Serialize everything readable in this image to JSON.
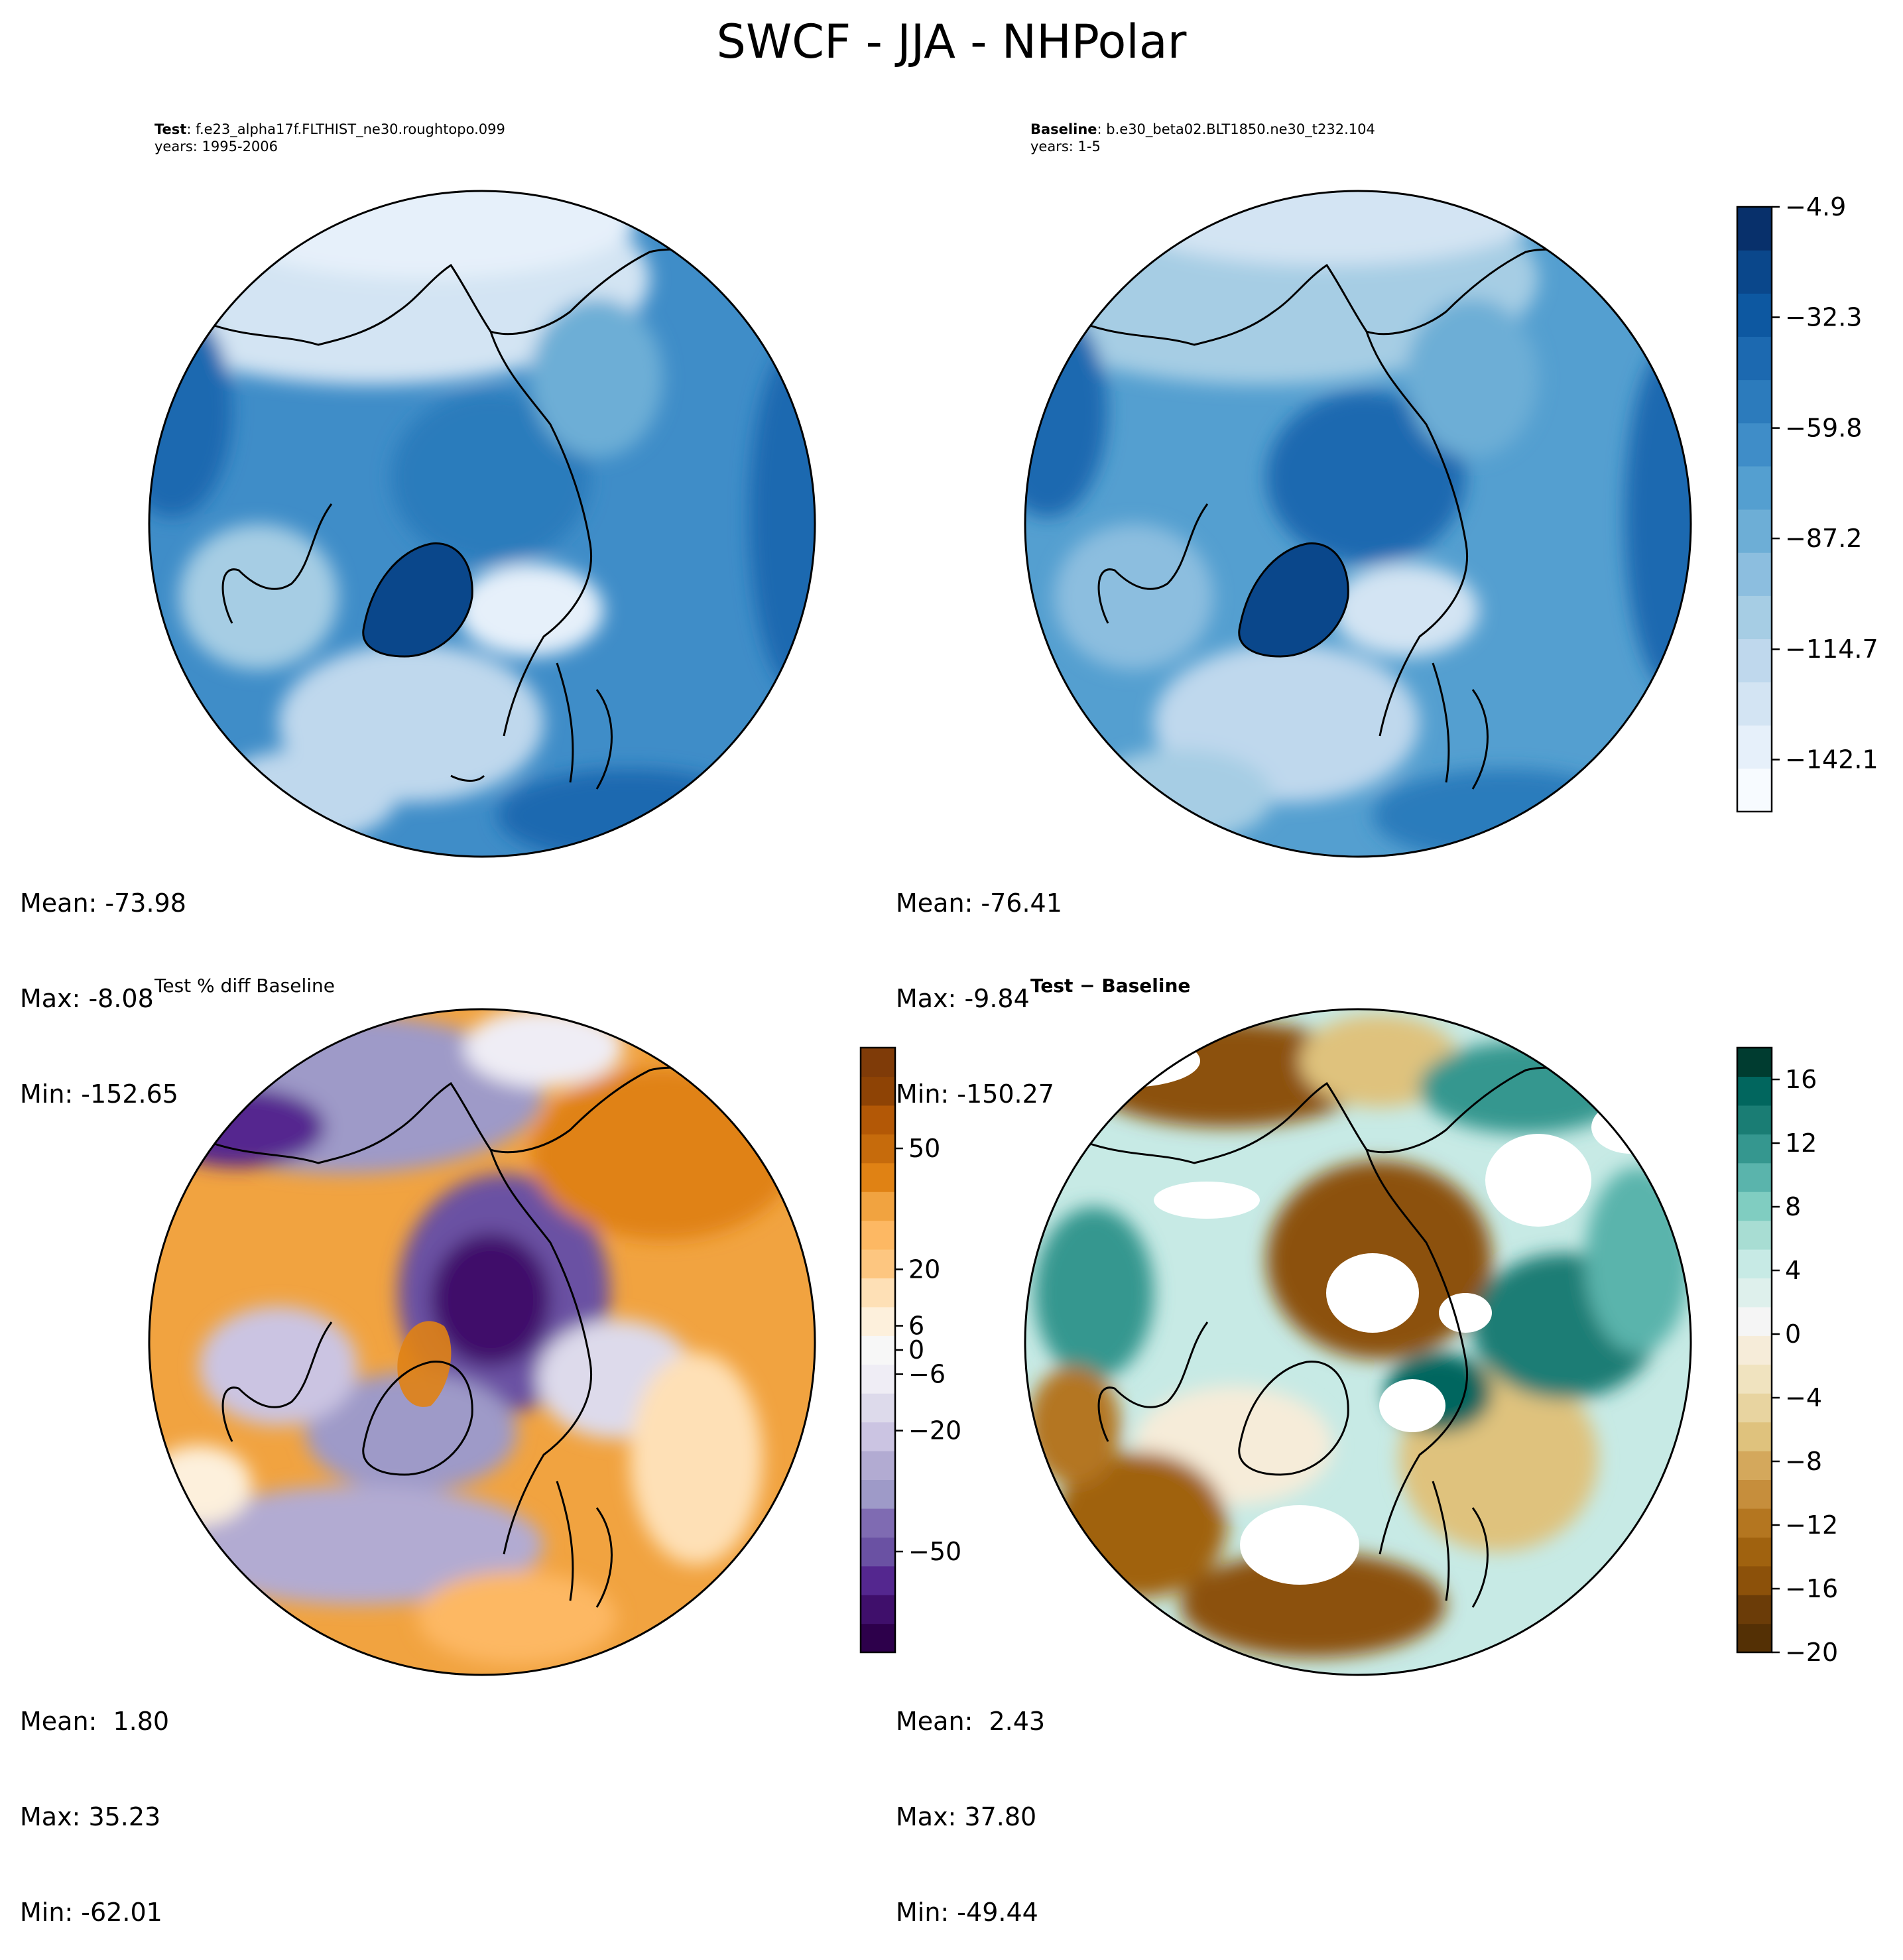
{
  "figure": {
    "title": "SWCF - JJA - NHPolar"
  },
  "panels": {
    "test": {
      "label_bold": "Test",
      "label_rest": ": f.e23_alpha17f.FLTHIST_ne30.roughtopo.099",
      "years": "years: 1995-2006",
      "stats": {
        "mean": "Mean: -73.98",
        "max": "Max: -8.08",
        "min": "Min: -152.65"
      }
    },
    "baseline": {
      "label_bold": "Baseline",
      "label_rest": ": b.e30_beta02.BLT1850.ne30_t232.104",
      "years": "years: 1-5",
      "stats": {
        "mean": "Mean: -76.41",
        "max": "Max: -9.84",
        "min": "Min: -150.27"
      }
    },
    "pct_diff": {
      "label": "Test % diff Baseline",
      "stats": {
        "mean": "Mean:  1.80",
        "max": "Max: 35.23",
        "min": "Min: -62.01"
      }
    },
    "diff": {
      "label": "Test − Baseline",
      "stats": {
        "mean": "Mean:  2.43",
        "max": "Max: 37.80",
        "min": "Min: -49.44"
      }
    }
  },
  "chart_data": [
    {
      "type": "heatmap",
      "title": "Test : f.e23_alpha17f.FLTHIST_ne30.roughtopo.099",
      "subtitle": "years: 1995-2006",
      "projection": "north polar stereographic",
      "colormap": "Blues",
      "summary": {
        "mean": -73.98,
        "max": -8.08,
        "min": -152.65
      },
      "colorbar": "shared with Baseline panel"
    },
    {
      "type": "heatmap",
      "title": "Baseline : b.e30_beta02.BLT1850.ne30_t232.104",
      "subtitle": "years: 1-5",
      "projection": "north polar stereographic",
      "colormap": "Blues",
      "summary": {
        "mean": -76.41,
        "max": -9.84,
        "min": -150.27
      },
      "colorbar": {
        "range": [
          -155,
          -4.9
        ],
        "ticks": [
          -4.9,
          -32.3,
          -59.8,
          -87.2,
          -114.7,
          -142.1
        ],
        "tick_labels": [
          "−4.9",
          "−32.3",
          "−59.8",
          "−87.2",
          "−114.7",
          "−142.1"
        ],
        "colors": [
          "#f7fbff",
          "#e6f0fa",
          "#d3e4f3",
          "#bfd8ed",
          "#a6cde4",
          "#8cbedf",
          "#6daed6",
          "#549fd0",
          "#3f8dc8",
          "#2c7bbc",
          "#1c69b0",
          "#0d58a1",
          "#0a478b",
          "#08306b"
        ]
      }
    },
    {
      "type": "heatmap",
      "title": "Test % diff Baseline",
      "projection": "north polar stereographic",
      "colormap": "PuOr (diverging)",
      "summary": {
        "mean": 1.8,
        "max": 35.23,
        "min": -62.01
      },
      "colorbar": {
        "range": [
          -75,
          75
        ],
        "ticks": [
          50,
          20,
          6,
          0,
          -6,
          -20,
          -50
        ],
        "tick_labels": [
          "50",
          "20",
          "6",
          "0",
          "−6",
          "−20",
          "−50"
        ],
        "colors_bottom_to_top": [
          "#2d004b",
          "#3f0f6b",
          "#54278f",
          "#6a51a3",
          "#7f6bb2",
          "#9e9ac8",
          "#b2abd2",
          "#cbc4e2",
          "#dddaeb",
          "#efedf5",
          "#f7f7f7",
          "#fdf0dc",
          "#fee0b6",
          "#fdc680",
          "#fdb863",
          "#f1a340",
          "#e08214",
          "#c66b0c",
          "#b35806",
          "#8e4305",
          "#7f3b08"
        ]
      }
    },
    {
      "type": "heatmap",
      "title": "Test − Baseline",
      "projection": "north polar stereographic",
      "colormap": "BrBG (diverging)",
      "summary": {
        "mean": 2.43,
        "max": 37.8,
        "min": -49.44
      },
      "colorbar": {
        "range": [
          -20,
          18
        ],
        "ticks": [
          16,
          12,
          8,
          4,
          0,
          -4,
          -8,
          -12,
          -16,
          -20
        ],
        "tick_labels": [
          "16",
          "12",
          "8",
          "4",
          "0",
          "−4",
          "−8",
          "−12",
          "−16",
          "−20"
        ],
        "colors_bottom_to_top": [
          "#543005",
          "#6b3c08",
          "#8c510a",
          "#a0620f",
          "#b47620",
          "#c68e3c",
          "#d4a85c",
          "#dfc27d",
          "#e8d4a0",
          "#f0e3bf",
          "#f6ecd9",
          "#f5f5f5",
          "#def0ec",
          "#c7eae5",
          "#a8ddd3",
          "#80cdc1",
          "#5ab4ac",
          "#35978f",
          "#1a7d74",
          "#01665e",
          "#003c30"
        ]
      }
    }
  ]
}
